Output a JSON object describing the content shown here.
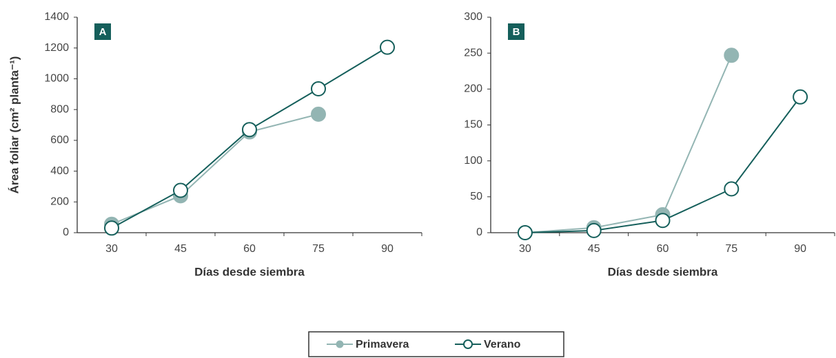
{
  "chart_data": [
    {
      "type": "line",
      "label": "A",
      "y_label": "Área foliar (cm² planta⁻¹)",
      "x_label": "Días desde siembra",
      "xlim": [
        22.5,
        97.5
      ],
      "xticks": [
        30,
        45,
        60,
        75,
        90
      ],
      "ylim": [
        0,
        1400
      ],
      "yticks": [
        0,
        200,
        400,
        600,
        800,
        1000,
        1200,
        1400
      ],
      "series": [
        {
          "name": "Primavera",
          "color": "#93b5b3",
          "marker": "filled",
          "x": [
            30,
            45,
            60,
            75
          ],
          "values": [
            55,
            240,
            655,
            770
          ]
        },
        {
          "name": "Verano",
          "color": "#155f5b",
          "marker": "open",
          "x": [
            30,
            45,
            60,
            75,
            90
          ],
          "values": [
            30,
            275,
            670,
            935,
            1205
          ]
        }
      ]
    },
    {
      "type": "line",
      "label": "B",
      "x_label": "Días desde siembra",
      "xlim": [
        22.5,
        97.5
      ],
      "xticks": [
        30,
        45,
        60,
        75,
        90
      ],
      "ylim": [
        0,
        300
      ],
      "yticks": [
        0,
        50,
        100,
        150,
        200,
        250,
        300
      ],
      "series": [
        {
          "name": "Primavera",
          "color": "#93b5b3",
          "marker": "filled",
          "x": [
            30,
            45,
            60,
            75
          ],
          "values": [
            0,
            7,
            25,
            247
          ]
        },
        {
          "name": "Verano",
          "color": "#155f5b",
          "marker": "open",
          "x": [
            30,
            45,
            60,
            75,
            90
          ],
          "values": [
            0,
            3,
            17,
            61,
            189
          ]
        }
      ]
    }
  ]
}
